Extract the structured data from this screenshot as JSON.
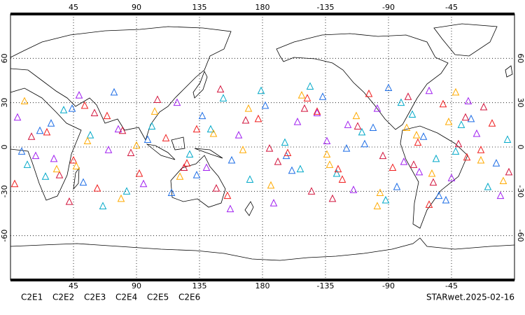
{
  "chart_data": {
    "type": "scatter",
    "annotation": "STARwet.2025-02-16",
    "xlim": [
      0,
      360
    ],
    "ylim": [
      -90,
      90
    ],
    "xticks": [
      45,
      90,
      135,
      180,
      {
        "value": 225,
        "label": "-135"
      },
      {
        "value": 270,
        "label": "-90"
      },
      {
        "value": 315,
        "label": "-45"
      }
    ],
    "yticks": [
      60,
      30,
      0,
      -30,
      -60
    ],
    "grid": true,
    "series": [
      {
        "name": "C2E1",
        "color": "#00a8c8",
        "x": [
          12,
          38,
          57,
          83,
          101,
          128,
          152,
          171,
          196,
          214,
          233,
          251,
          268,
          287,
          304,
          322,
          341,
          355,
          66,
          143,
          207,
          279,
          318,
          25,
          179
        ],
        "values": [
          -12,
          25,
          8,
          -30,
          14,
          -5,
          33,
          -22,
          3,
          41,
          -18,
          10,
          -36,
          22,
          -8,
          15,
          -27,
          5,
          -40,
          12,
          -15,
          30,
          -3,
          -20,
          38
        ]
      },
      {
        "name": "C2E2",
        "color": "#a020f0",
        "x": [
          5,
          31,
          49,
          77,
          95,
          119,
          140,
          163,
          188,
          205,
          226,
          245,
          262,
          281,
          299,
          315,
          333,
          350,
          70,
          157,
          219,
          292,
          327,
          18,
          241
        ],
        "values": [
          20,
          -8,
          35,
          12,
          -25,
          30,
          -14,
          8,
          -38,
          17,
          4,
          -29,
          26,
          -10,
          38,
          -21,
          9,
          -33,
          -2,
          -42,
          23,
          -17,
          31,
          -6,
          15
        ]
      },
      {
        "name": "C2E3",
        "color": "#1e6ee6",
        "x": [
          8,
          29,
          52,
          74,
          98,
          115,
          137,
          158,
          182,
          201,
          223,
          240,
          259,
          276,
          295,
          311,
          329,
          347,
          44,
          133,
          197,
          270,
          306,
          21,
          253
        ],
        "values": [
          -3,
          16,
          -24,
          37,
          5,
          -31,
          21,
          -9,
          28,
          -16,
          34,
          -1,
          13,
          -27,
          7,
          -36,
          19,
          -11,
          26,
          -19,
          -6,
          40,
          -33,
          11,
          2
        ]
      },
      {
        "name": "C2E4",
        "color": "#d2143c",
        "x": [
          15,
          35,
          60,
          86,
          105,
          124,
          147,
          168,
          191,
          210,
          230,
          248,
          266,
          284,
          302,
          320,
          338,
          356,
          80,
          150,
          215,
          288,
          325,
          42,
          185
        ],
        "values": [
          7,
          -19,
          23,
          -4,
          32,
          -14,
          -28,
          18,
          -10,
          26,
          -35,
          14,
          -6,
          34,
          -24,
          2,
          27,
          -17,
          11,
          39,
          -30,
          -12,
          20,
          -37,
          -1
        ]
      },
      {
        "name": "C2E5",
        "color": "#f01e1e",
        "x": [
          3,
          26,
          45,
          69,
          92,
          111,
          133,
          155,
          177,
          198,
          219,
          237,
          256,
          273,
          291,
          309,
          326,
          344,
          62,
          126,
          212,
          299,
          336,
          53,
          234
        ],
        "values": [
          -25,
          10,
          -9,
          21,
          -18,
          6,
          12,
          -33,
          19,
          -4,
          24,
          -22,
          36,
          -14,
          3,
          29,
          -7,
          16,
          -28,
          -11,
          33,
          -39,
          -2,
          28,
          -15
        ]
      },
      {
        "name": "C2E6",
        "color": "#ffaa00",
        "x": [
          10,
          33,
          55,
          79,
          103,
          121,
          145,
          166,
          186,
          208,
          228,
          247,
          264,
          283,
          301,
          318,
          336,
          352,
          90,
          170,
          226,
          262,
          313,
          47,
          290
        ],
        "values": [
          31,
          -15,
          4,
          -35,
          24,
          -20,
          9,
          -2,
          -26,
          35,
          -12,
          21,
          -31,
          13,
          -18,
          37,
          -9,
          -23,
          1,
          26,
          -5,
          -40,
          17,
          -13,
          8
        ]
      }
    ]
  }
}
